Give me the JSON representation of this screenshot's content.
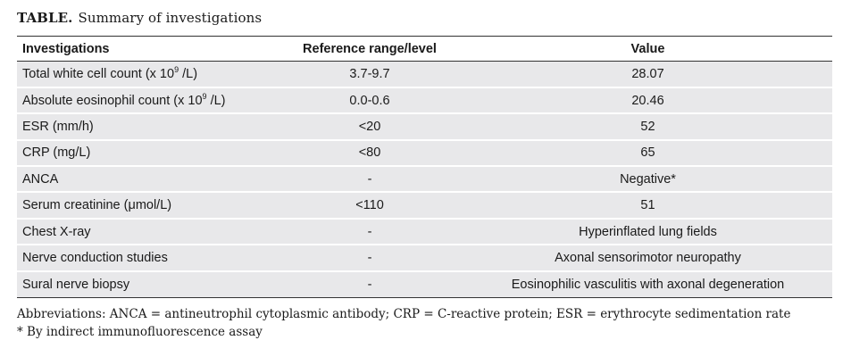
{
  "caption": {
    "lead": "TABLE.",
    "text": "Summary of investigations"
  },
  "table": {
    "headers": [
      "Investigations",
      "Reference range/level",
      "Value"
    ],
    "rows": [
      {
        "label_pre": "Total white cell count (x 10",
        "label_sup": "9",
        "label_post": " /L)",
        "range": "3.7-9.7",
        "value": "28.07"
      },
      {
        "label_pre": "Absolute eosinophil count (x 10",
        "label_sup": "9",
        "label_post": " /L)",
        "range": "0.0-0.6",
        "value": "20.46"
      },
      {
        "label_pre": "ESR (mm/h)",
        "label_sup": "",
        "label_post": "",
        "range": "<20",
        "value": "52"
      },
      {
        "label_pre": "CRP (mg/L)",
        "label_sup": "",
        "label_post": "",
        "range": "<80",
        "value": "65"
      },
      {
        "label_pre": "ANCA",
        "label_sup": "",
        "label_post": "",
        "range": "-",
        "value": "Negative*"
      },
      {
        "label_pre": "Serum creatinine (μmol/L)",
        "label_sup": "",
        "label_post": "",
        "range": "<110",
        "value": "51"
      },
      {
        "label_pre": "Chest X-ray",
        "label_sup": "",
        "label_post": "",
        "range": "-",
        "value": "Hyperinflated lung fields"
      },
      {
        "label_pre": "Nerve conduction studies",
        "label_sup": "",
        "label_post": "",
        "range": "-",
        "value": "Axonal sensorimotor neuropathy"
      },
      {
        "label_pre": "Sural nerve biopsy",
        "label_sup": "",
        "label_post": "",
        "range": "-",
        "value": "Eosinophilic vasculitis with axonal degeneration"
      }
    ]
  },
  "notes": {
    "abbreviations": "Abbreviations:  ANCA = antineutrophil cytoplasmic antibody; CRP = C-reactive protein; ESR = erythrocyte sedimentation rate",
    "footnote": "*  By indirect immunofluorescence assay"
  }
}
